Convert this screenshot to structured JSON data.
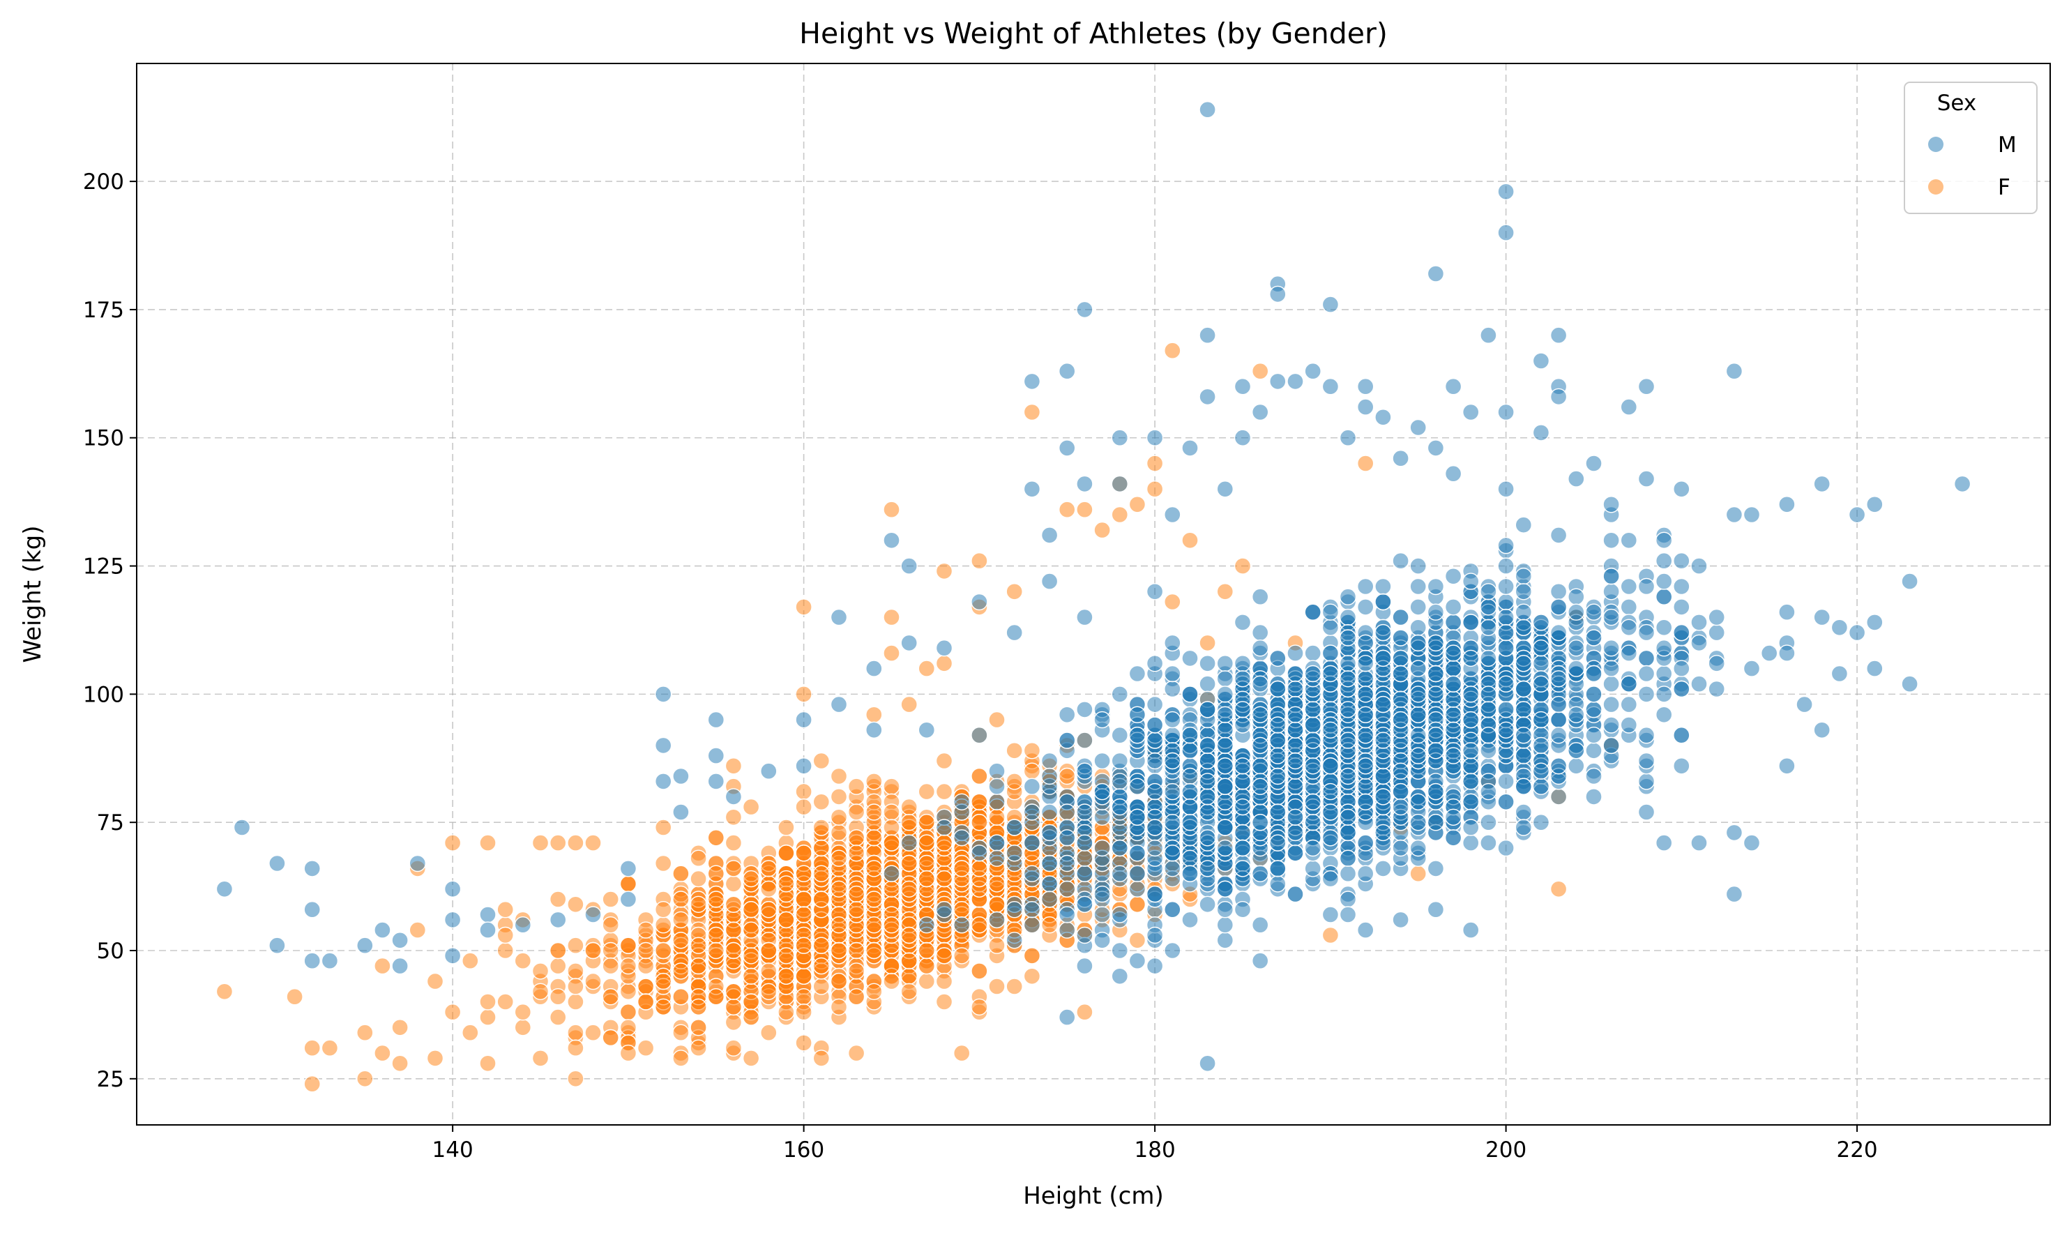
{
  "chart_data": {
    "type": "scatter",
    "title": "Height vs Weight of Athletes (by Gender)",
    "xlabel": "Height (cm)",
    "ylabel": "Weight (kg)",
    "xlim": [
      122,
      231
    ],
    "ylim": [
      16,
      223
    ],
    "x_ticks": [
      140,
      160,
      180,
      200,
      220
    ],
    "y_ticks": [
      25,
      50,
      75,
      100,
      125,
      150,
      175,
      200
    ],
    "grid": true,
    "legend": {
      "title": "Sex",
      "placement": "top-right"
    },
    "series": [
      {
        "name": "M",
        "color": "#1f77b4",
        "points": [
          [
            127,
            62
          ],
          [
            128,
            74
          ],
          [
            130,
            67
          ],
          [
            130,
            51
          ],
          [
            132,
            66
          ],
          [
            132,
            58
          ],
          [
            132,
            48
          ],
          [
            133,
            48
          ],
          [
            135,
            51
          ],
          [
            136,
            54
          ],
          [
            137,
            52
          ],
          [
            137,
            47
          ],
          [
            138,
            67
          ],
          [
            140,
            62
          ],
          [
            140,
            56
          ],
          [
            140,
            49
          ],
          [
            142,
            57
          ],
          [
            142,
            54
          ],
          [
            144,
            55
          ],
          [
            146,
            56
          ],
          [
            148,
            57
          ],
          [
            150,
            60
          ],
          [
            150,
            66
          ],
          [
            152,
            100
          ],
          [
            152,
            90
          ],
          [
            152,
            83
          ],
          [
            153,
            77
          ],
          [
            153,
            84
          ],
          [
            155,
            95
          ],
          [
            155,
            88
          ],
          [
            155,
            83
          ],
          [
            156,
            80
          ],
          [
            158,
            85
          ],
          [
            160,
            86
          ],
          [
            160,
            95
          ],
          [
            162,
            115
          ],
          [
            162,
            98
          ],
          [
            164,
            93
          ],
          [
            164,
            105
          ],
          [
            165,
            130
          ],
          [
            166,
            110
          ],
          [
            166,
            125
          ],
          [
            168,
            109
          ],
          [
            170,
            118
          ],
          [
            170,
            92
          ],
          [
            172,
            112
          ],
          [
            173,
            140
          ],
          [
            173,
            161
          ],
          [
            174,
            131
          ],
          [
            174,
            122
          ],
          [
            175,
            148
          ],
          [
            175,
            163
          ],
          [
            176,
            175
          ],
          [
            176,
            141
          ],
          [
            176,
            115
          ],
          [
            175,
            37
          ],
          [
            178,
            150
          ],
          [
            178,
            141
          ],
          [
            180,
            150
          ],
          [
            180,
            120
          ],
          [
            181,
            135
          ],
          [
            182,
            148
          ],
          [
            183,
            214
          ],
          [
            183,
            170
          ],
          [
            183,
            158
          ],
          [
            183,
            28
          ],
          [
            184,
            140
          ],
          [
            185,
            160
          ],
          [
            185,
            150
          ],
          [
            186,
            155
          ],
          [
            186,
            48
          ],
          [
            187,
            180
          ],
          [
            187,
            178
          ],
          [
            187,
            161
          ],
          [
            188,
            161
          ],
          [
            189,
            163
          ],
          [
            190,
            176
          ],
          [
            190,
            160
          ],
          [
            191,
            150
          ],
          [
            192,
            160
          ],
          [
            192,
            156
          ],
          [
            193,
            154
          ],
          [
            194,
            146
          ],
          [
            195,
            152
          ],
          [
            196,
            182
          ],
          [
            196,
            148
          ],
          [
            197,
            160
          ],
          [
            197,
            143
          ],
          [
            198,
            155
          ],
          [
            199,
            170
          ],
          [
            200,
            198
          ],
          [
            200,
            190
          ],
          [
            200,
            155
          ],
          [
            200,
            140
          ],
          [
            200,
            112
          ],
          [
            201,
            120
          ],
          [
            202,
            165
          ],
          [
            202,
            151
          ],
          [
            203,
            170
          ],
          [
            203,
            160
          ],
          [
            203,
            158
          ],
          [
            204,
            142
          ],
          [
            205,
            145
          ],
          [
            206,
            137
          ],
          [
            207,
            156
          ],
          [
            208,
            160
          ],
          [
            208,
            142
          ],
          [
            208,
            77
          ],
          [
            209,
            71
          ],
          [
            210,
            140
          ],
          [
            210,
            105
          ],
          [
            211,
            71
          ],
          [
            212,
            115
          ],
          [
            213,
            163
          ],
          [
            213,
            135
          ],
          [
            213,
            61
          ],
          [
            213,
            73
          ],
          [
            214,
            135
          ],
          [
            214,
            71
          ],
          [
            215,
            108
          ],
          [
            216,
            137
          ],
          [
            216,
            108
          ],
          [
            217,
            98
          ],
          [
            218,
            141
          ],
          [
            218,
            115
          ],
          [
            218,
            93
          ],
          [
            219,
            104
          ],
          [
            219,
            113
          ],
          [
            220,
            135
          ],
          [
            220,
            112
          ],
          [
            221,
            137
          ],
          [
            221,
            114
          ],
          [
            223,
            122
          ],
          [
            223,
            102
          ],
          [
            226,
            141
          ],
          [
            191,
            57
          ],
          [
            192,
            54
          ],
          [
            196,
            58
          ],
          [
            198,
            54
          ],
          [
            186,
            55
          ],
          [
            184,
            58
          ],
          [
            180,
            47
          ],
          [
            177,
            52
          ],
          [
            176,
            47
          ],
          [
            190,
            64
          ],
          [
            195,
            70
          ],
          [
            200,
            70
          ],
          [
            205,
            80
          ],
          [
            185,
            70
          ],
          [
            182,
            75
          ],
          [
            178,
            78
          ],
          [
            175,
            72
          ]
        ],
        "cluster": {
          "x_mean": 191,
          "x_sd": 8,
          "y_base": 90,
          "y_slope": 1.0,
          "y_sd": 11,
          "n": 2600
        }
      },
      {
        "name": "F",
        "color": "#ff7f0e",
        "points": [
          [
            127,
            42
          ],
          [
            131,
            41
          ],
          [
            132,
            31
          ],
          [
            133,
            31
          ],
          [
            135,
            34
          ],
          [
            135,
            25
          ],
          [
            136,
            30
          ],
          [
            136,
            47
          ],
          [
            137,
            28
          ],
          [
            137,
            35
          ],
          [
            138,
            66
          ],
          [
            138,
            54
          ],
          [
            139,
            44
          ],
          [
            140,
            71
          ],
          [
            140,
            38
          ],
          [
            141,
            34
          ],
          [
            141,
            48
          ],
          [
            142,
            71
          ],
          [
            142,
            28
          ],
          [
            143,
            58
          ],
          [
            143,
            40
          ],
          [
            145,
            71
          ],
          [
            146,
            71
          ],
          [
            147,
            71
          ],
          [
            148,
            71
          ],
          [
            150,
            30
          ],
          [
            151,
            40
          ],
          [
            152,
            74
          ],
          [
            154,
            35
          ],
          [
            155,
            72
          ],
          [
            156,
            86
          ],
          [
            156,
            82
          ],
          [
            157,
            78
          ],
          [
            160,
            32
          ],
          [
            160,
            117
          ],
          [
            160,
            100
          ],
          [
            161,
            87
          ],
          [
            162,
            80
          ],
          [
            163,
            82
          ],
          [
            164,
            96
          ],
          [
            165,
            136
          ],
          [
            165,
            115
          ],
          [
            165,
            108
          ],
          [
            166,
            98
          ],
          [
            167,
            105
          ],
          [
            168,
            124
          ],
          [
            168,
            106
          ],
          [
            169,
            30
          ],
          [
            170,
            126
          ],
          [
            170,
            117
          ],
          [
            170,
            39
          ],
          [
            171,
            95
          ],
          [
            172,
            120
          ],
          [
            173,
            155
          ],
          [
            175,
            136
          ],
          [
            176,
            136
          ],
          [
            176,
            38
          ],
          [
            177,
            132
          ],
          [
            178,
            141
          ],
          [
            178,
            135
          ],
          [
            179,
            137
          ],
          [
            180,
            145
          ],
          [
            180,
            140
          ],
          [
            181,
            167
          ],
          [
            181,
            118
          ],
          [
            182,
            130
          ],
          [
            183,
            110
          ],
          [
            184,
            120
          ],
          [
            185,
            125
          ],
          [
            186,
            163
          ],
          [
            188,
            110
          ],
          [
            190,
            53
          ],
          [
            192,
            145
          ],
          [
            195,
            65
          ],
          [
            196,
            75
          ],
          [
            203,
            62
          ],
          [
            203,
            80
          ],
          [
            204,
            115
          ],
          [
            206,
            90
          ],
          [
            199,
            83
          ],
          [
            194,
            74
          ],
          [
            188,
            98
          ],
          [
            186,
            95
          ],
          [
            183,
            99
          ],
          [
            180,
            88
          ],
          [
            178,
            84
          ],
          [
            175,
            90
          ],
          [
            173,
            85
          ]
        ],
        "cluster": {
          "x_mean": 165,
          "x_sd": 8,
          "y_base": 60,
          "y_slope": 0.85,
          "y_sd": 8.5,
          "n": 2100
        }
      }
    ]
  }
}
